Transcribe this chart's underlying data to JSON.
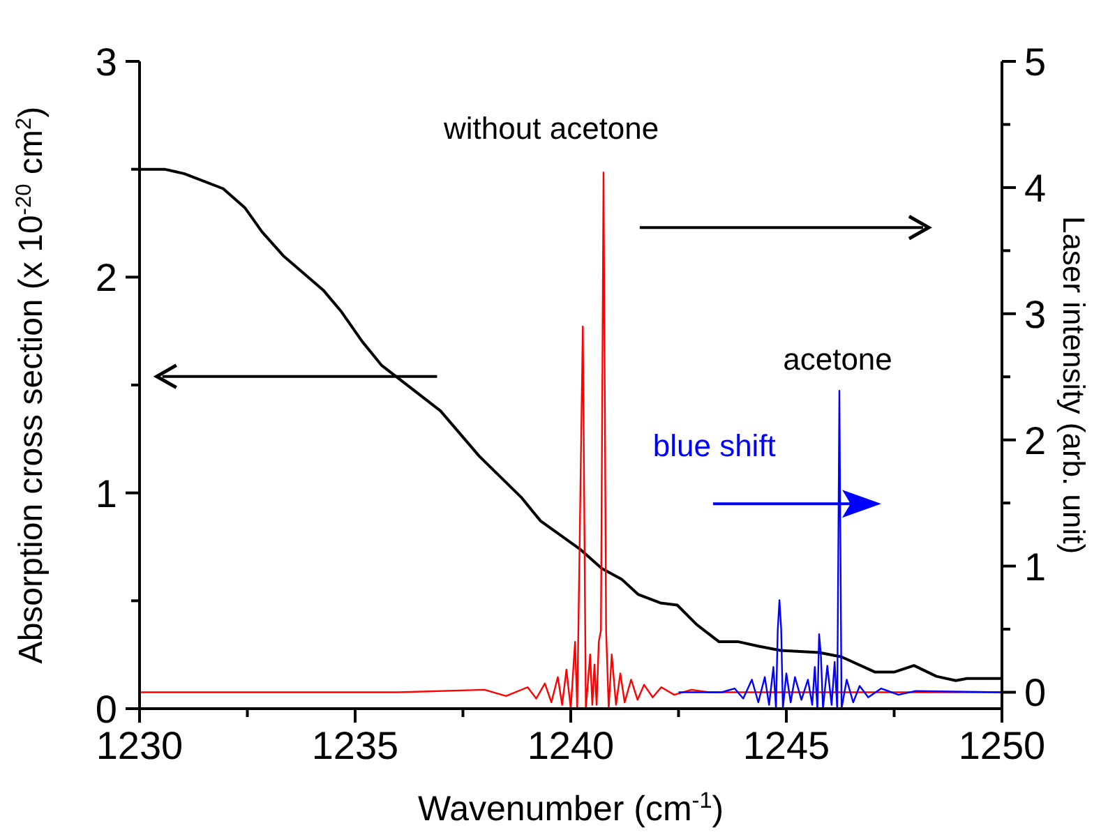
{
  "chart_data": {
    "type": "line",
    "xlabel": "Wavenumber (cm$^{-1}$)",
    "ylabel": "Absorption cross section (x 10$^{-20}$ cm$^{2}$)",
    "y2label": "Laser intensity (arb. unit)",
    "xlim": [
      1230,
      1250
    ],
    "xticks": [
      1230,
      {
        "value": 1232.5,
        "label": null
      },
      1235,
      {
        "value": 1237.5,
        "label": null
      },
      1240,
      {
        "value": 1242.5,
        "label": null
      },
      1245,
      {
        "value": 1247.5,
        "label": null
      },
      1250
    ],
    "ylim": [
      0,
      3
    ],
    "yticks": [
      0,
      {
        "value": 0.5,
        "label": null
      },
      1,
      {
        "value": 1.5,
        "label": null
      },
      2,
      {
        "value": 2.5,
        "label": null
      },
      3
    ],
    "y2lim": [
      -0.13,
      5
    ],
    "y2ticks": [
      0,
      {
        "value": 0.5,
        "label": null
      },
      1,
      {
        "value": 1.5,
        "label": null
      },
      2,
      {
        "value": 2.5,
        "label": null
      },
      3,
      {
        "value": 3.5,
        "label": null
      },
      4,
      {
        "value": 4.5,
        "label": null
      },
      5
    ],
    "grid": false,
    "series": [
      {
        "color": "#000000",
        "x": [
          1230,
          1230.58,
          1231.03,
          1231.94,
          1232.45,
          1232.84,
          1233.33,
          1234.26,
          1234.68,
          1235.17,
          1235.62,
          1236.14,
          1236.98,
          1237.88,
          1238.85,
          1239.3,
          1240.21,
          1240.72,
          1241.18,
          1241.56,
          1242.08,
          1242.47,
          1242.92,
          1243.44,
          1243.89,
          1244.34,
          1244.86,
          1245.76,
          1246.28,
          1247.05,
          1247.51,
          1247.96,
          1248.48,
          1248.93,
          1249.19,
          1250
        ],
        "values": [
          2.5,
          2.5,
          2.48,
          2.41,
          2.32,
          2.21,
          2.1,
          1.94,
          1.84,
          1.7,
          1.59,
          1.51,
          1.38,
          1.17,
          0.98,
          0.87,
          0.74,
          0.65,
          0.6,
          0.53,
          0.49,
          0.48,
          0.39,
          0.31,
          0.31,
          0.29,
          0.27,
          0.26,
          0.24,
          0.17,
          0.17,
          0.2,
          0.15,
          0.13,
          0.14,
          0.14
        ]
      },
      {
        "color": "#ff0000",
        "axis": "y2",
        "x": [
          1230,
          1236,
          1238,
          1238.5,
          1239,
          1239.2,
          1239.4,
          1239.55,
          1239.7,
          1239.8,
          1239.9,
          1240,
          1240.1,
          1240.15,
          1240.28,
          1240.35,
          1240.45,
          1240.5,
          1240.55,
          1240.6,
          1240.65,
          1240.7,
          1240.76,
          1240.82,
          1240.88,
          1240.95,
          1241.05,
          1241.15,
          1241.25,
          1241.4,
          1241.55,
          1241.7,
          1241.9,
          1242.1,
          1242.4,
          1242.8,
          1243.2,
          1250
        ],
        "values": [
          0,
          0,
          0.02,
          -0.03,
          0.04,
          -0.05,
          0.07,
          -0.08,
          0.12,
          -0.1,
          0.18,
          -0.13,
          0.4,
          -0.13,
          2.9,
          -0.13,
          0.3,
          -0.1,
          0.22,
          -0.1,
          0.4,
          0.49,
          4.12,
          0.49,
          -0.13,
          0.3,
          -0.1,
          0.15,
          -0.08,
          0.1,
          -0.06,
          0.06,
          -0.04,
          0.04,
          -0.02,
          0.02,
          0,
          0
        ]
      },
      {
        "color": "#0000ff",
        "axis": "y2",
        "x": [
          1242.5,
          1243.5,
          1243.8,
          1244,
          1244.2,
          1244.35,
          1244.5,
          1244.6,
          1244.7,
          1244.76,
          1244.8,
          1244.84,
          1244.88,
          1244.92,
          1245,
          1245.1,
          1245.2,
          1245.35,
          1245.5,
          1245.6,
          1245.66,
          1245.72,
          1245.76,
          1245.8,
          1245.85,
          1245.95,
          1246.05,
          1246.12,
          1246.18,
          1246.23,
          1246.28,
          1246.4,
          1246.55,
          1246.7,
          1246.9,
          1247.2,
          1247.6,
          1248,
          1250
        ],
        "values": [
          0,
          0,
          0.03,
          -0.05,
          0.1,
          -0.08,
          0.12,
          -0.1,
          0.2,
          -0.13,
          0.49,
          0.73,
          0.5,
          -0.13,
          0.15,
          -0.08,
          0.12,
          -0.06,
          0.1,
          -0.1,
          0.2,
          -0.13,
          0.46,
          0.3,
          -0.13,
          0.21,
          -0.1,
          0.24,
          -0.13,
          2.39,
          -0.13,
          0.1,
          -0.08,
          0.05,
          -0.04,
          0.03,
          -0.02,
          0.01,
          0
        ]
      }
    ],
    "annotations": [
      "without acetone",
      "acetone",
      "blue shift"
    ]
  }
}
